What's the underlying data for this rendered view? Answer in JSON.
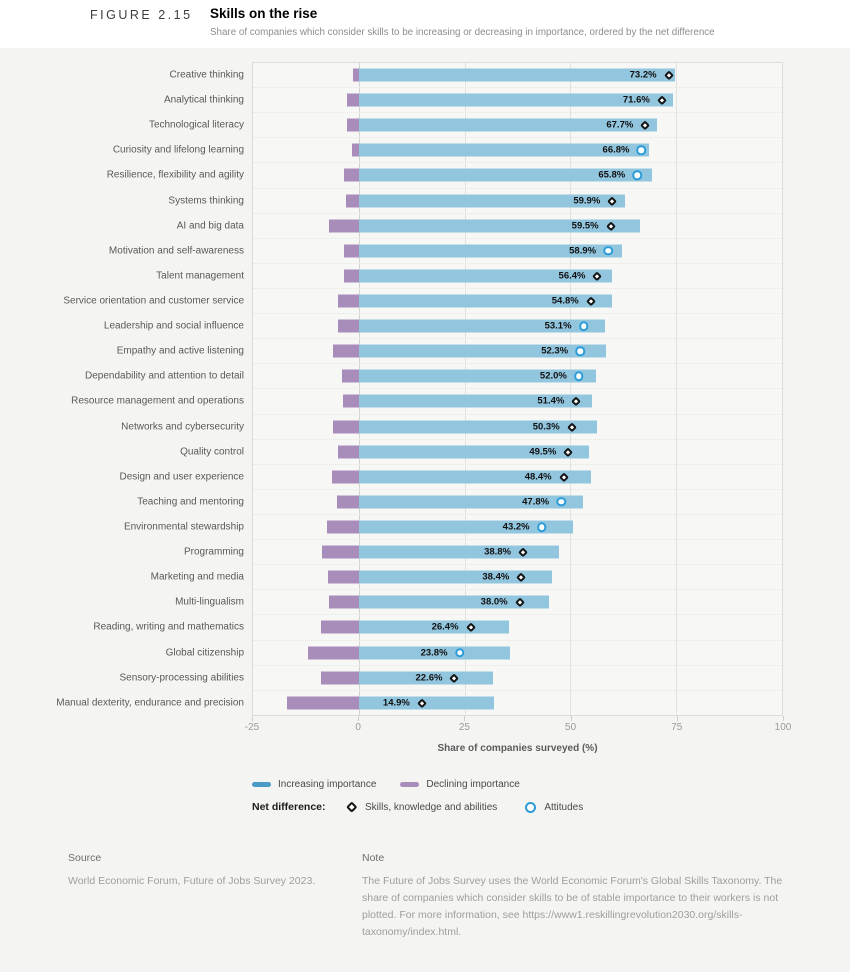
{
  "header": {
    "figure_label": "FIGURE 2.15",
    "title": "Skills on the rise",
    "subtitle": "Share of companies which consider skills to be increasing or decreasing in importance, ordered by the net difference"
  },
  "chart_data": {
    "type": "bar",
    "orientation": "horizontal-diverging",
    "title": "Skills on the rise",
    "xlabel": "Share of companies surveyed (%)",
    "ylabel": "",
    "xlim": [
      -25,
      100
    ],
    "xticks": [
      -25,
      0,
      25,
      50,
      75,
      100
    ],
    "gridlines": [
      0,
      25,
      50,
      75
    ],
    "grid": true,
    "legend_position": "bottom",
    "value_label_format": "net difference shown as % label at marker",
    "series_names": [
      "Increasing importance",
      "Declining importance"
    ],
    "marker_meaning": "Net difference (increasing minus declining)",
    "rows": [
      {
        "skill": "Creative thinking",
        "increasing": 74.6,
        "declining": 1.4,
        "net": 73.2,
        "marker": "diamond"
      },
      {
        "skill": "Analytical thinking",
        "increasing": 74.3,
        "declining": 2.7,
        "net": 71.6,
        "marker": "diamond"
      },
      {
        "skill": "Technological literacy",
        "increasing": 70.4,
        "declining": 2.7,
        "net": 67.7,
        "marker": "diamond"
      },
      {
        "skill": "Curiosity and lifelong learning",
        "increasing": 68.5,
        "declining": 1.7,
        "net": 66.8,
        "marker": "circle"
      },
      {
        "skill": "Resilience, flexibility and agility",
        "increasing": 69.2,
        "declining": 3.4,
        "net": 65.8,
        "marker": "circle"
      },
      {
        "skill": "Systems thinking",
        "increasing": 62.9,
        "declining": 3.0,
        "net": 59.9,
        "marker": "diamond"
      },
      {
        "skill": "AI and big data",
        "increasing": 66.5,
        "declining": 7.0,
        "net": 59.5,
        "marker": "diamond"
      },
      {
        "skill": "Motivation and self-awareness",
        "increasing": 62.3,
        "declining": 3.4,
        "net": 58.9,
        "marker": "circle"
      },
      {
        "skill": "Talent management",
        "increasing": 59.9,
        "declining": 3.5,
        "net": 56.4,
        "marker": "diamond"
      },
      {
        "skill": "Service orientation and customer service",
        "increasing": 59.8,
        "declining": 5.0,
        "net": 54.8,
        "marker": "diamond"
      },
      {
        "skill": "Leadership and social influence",
        "increasing": 58.1,
        "declining": 5.0,
        "net": 53.1,
        "marker": "circle"
      },
      {
        "skill": "Empathy and active listening",
        "increasing": 58.5,
        "declining": 6.2,
        "net": 52.3,
        "marker": "circle"
      },
      {
        "skill": "Dependability and attention to detail",
        "increasing": 56.0,
        "declining": 4.0,
        "net": 52.0,
        "marker": "circle"
      },
      {
        "skill": "Resource management and operations",
        "increasing": 55.2,
        "declining": 3.8,
        "net": 51.4,
        "marker": "diamond"
      },
      {
        "skill": "Networks and cybersecurity",
        "increasing": 56.3,
        "declining": 6.0,
        "net": 50.3,
        "marker": "diamond"
      },
      {
        "skill": "Quality control",
        "increasing": 54.5,
        "declining": 5.0,
        "net": 49.5,
        "marker": "diamond"
      },
      {
        "skill": "Design and user experience",
        "increasing": 54.8,
        "declining": 6.4,
        "net": 48.4,
        "marker": "diamond"
      },
      {
        "skill": "Teaching and mentoring",
        "increasing": 53.0,
        "declining": 5.2,
        "net": 47.8,
        "marker": "circle"
      },
      {
        "skill": "Environmental stewardship",
        "increasing": 50.6,
        "declining": 7.4,
        "net": 43.2,
        "marker": "circle"
      },
      {
        "skill": "Programming",
        "increasing": 47.4,
        "declining": 8.6,
        "net": 38.8,
        "marker": "diamond"
      },
      {
        "skill": "Marketing and media",
        "increasing": 45.6,
        "declining": 7.2,
        "net": 38.4,
        "marker": "diamond"
      },
      {
        "skill": "Multi-lingualism",
        "increasing": 45.0,
        "declining": 7.0,
        "net": 38.0,
        "marker": "diamond"
      },
      {
        "skill": "Reading, writing and mathematics",
        "increasing": 35.4,
        "declining": 9.0,
        "net": 26.4,
        "marker": "diamond"
      },
      {
        "skill": "Global citizenship",
        "increasing": 35.8,
        "declining": 12.0,
        "net": 23.8,
        "marker": "circle"
      },
      {
        "skill": "Sensory-processing abilities",
        "increasing": 31.6,
        "declining": 9.0,
        "net": 22.6,
        "marker": "diamond"
      },
      {
        "skill": "Manual dexterity, endurance and precision",
        "increasing": 31.9,
        "declining": 17.0,
        "net": 14.9,
        "marker": "diamond"
      }
    ]
  },
  "legend": {
    "increasing_label": "Increasing importance",
    "declining_label": "Declining importance",
    "net_difference_label": "Net difference:",
    "diamond_label": "Skills, knowledge and abilities",
    "circle_label": "Attitudes"
  },
  "colors": {
    "increasing_bar": "#92c5de",
    "declining_bar": "#a88cba",
    "diamond_marker_stroke": "#141414",
    "circle_marker_stroke": "#2b9cd8",
    "marker_fill": "#ffffff",
    "plot_background": "#f7f7f5",
    "page_background": "#f4f4f2"
  },
  "footer": {
    "source_title": "Source",
    "source_text": "World Economic Forum, Future of Jobs Survey 2023.",
    "note_title": "Note",
    "note_text": "The Future of Jobs Survey uses the World Economic Forum's Global Skills Taxonomy. The share of companies which consider skills to be of stable importance to their workers is not plotted. For more information, see https://www1.reskillingrevolution2030.org/skills-taxonomy/index.html."
  }
}
